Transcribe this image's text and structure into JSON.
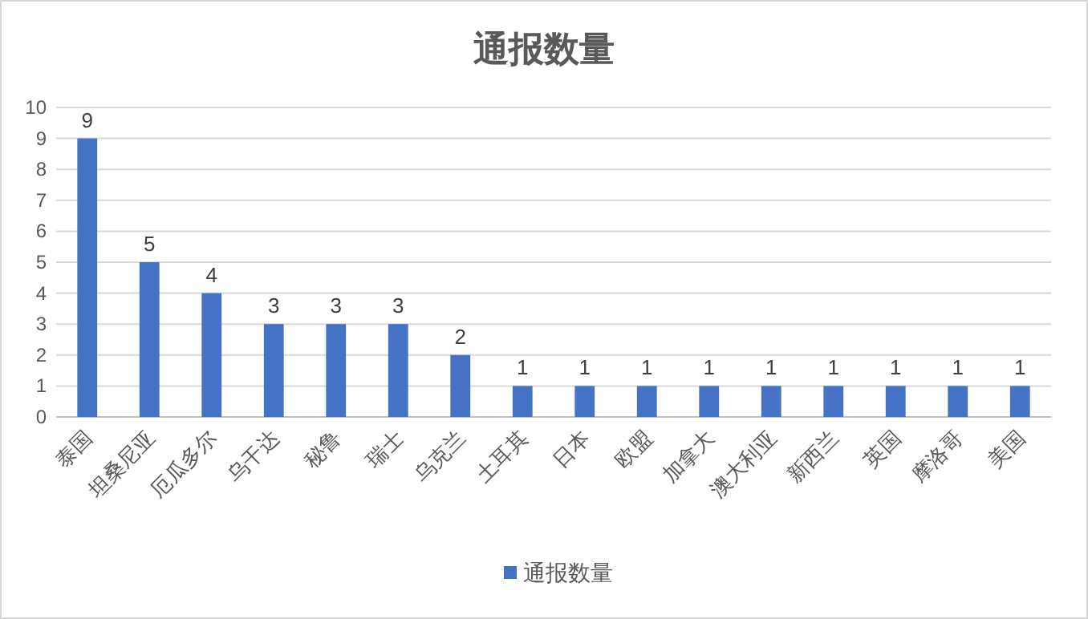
{
  "chart_data": {
    "type": "bar",
    "title": "通报数量",
    "categories": [
      "泰国",
      "坦桑尼亚",
      "厄瓜多尔",
      "乌干达",
      "秘鲁",
      "瑞士",
      "乌克兰",
      "土耳其",
      "日本",
      "欧盟",
      "加拿大",
      "澳大利亚",
      "新西兰",
      "英国",
      "摩洛哥",
      "美国"
    ],
    "series": [
      {
        "name": "通报数量",
        "color": "#4472c4",
        "values": [
          9,
          5,
          4,
          3,
          3,
          3,
          2,
          1,
          1,
          1,
          1,
          1,
          1,
          1,
          1,
          1
        ]
      }
    ],
    "ylim": [
      0,
      10
    ],
    "yticks": [
      0,
      1,
      2,
      3,
      4,
      5,
      6,
      7,
      8,
      9,
      10
    ],
    "grid": "y",
    "legend": "bottom",
    "data_labels": true
  }
}
